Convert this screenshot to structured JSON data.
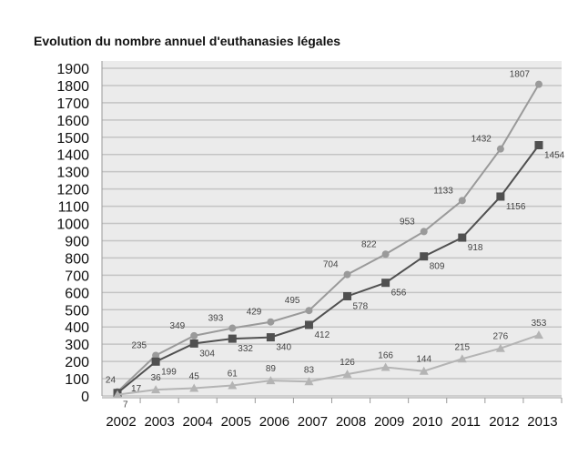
{
  "chart_data": {
    "type": "line",
    "title": "Evolution du nombre annuel d'euthanasies légales",
    "xlabel": "",
    "ylabel": "",
    "ylim": [
      0,
      1900
    ],
    "yticks": [
      0,
      100,
      200,
      300,
      400,
      500,
      600,
      700,
      800,
      900,
      1000,
      1100,
      1200,
      1300,
      1400,
      1500,
      1600,
      1700,
      1800,
      1900
    ],
    "grid": true,
    "categories": [
      "2002",
      "2003",
      "2004",
      "2005",
      "2006",
      "2007",
      "2008",
      "2009",
      "2010",
      "2011",
      "2012",
      "2013"
    ],
    "series": [
      {
        "name": "circle-series",
        "marker": "circle",
        "color": "#9a9a9a",
        "values": [
          24,
          235,
          349,
          393,
          429,
          495,
          704,
          822,
          953,
          1133,
          1432,
          1807
        ]
      },
      {
        "name": "square-series",
        "marker": "square",
        "color": "#505050",
        "values": [
          17,
          199,
          304,
          332,
          340,
          412,
          578,
          656,
          809,
          918,
          1156,
          1454
        ]
      },
      {
        "name": "triangle-series",
        "marker": "triangle",
        "color": "#b4b4b4",
        "values": [
          7,
          36,
          45,
          61,
          89,
          83,
          126,
          166,
          144,
          215,
          276,
          353
        ]
      }
    ]
  }
}
